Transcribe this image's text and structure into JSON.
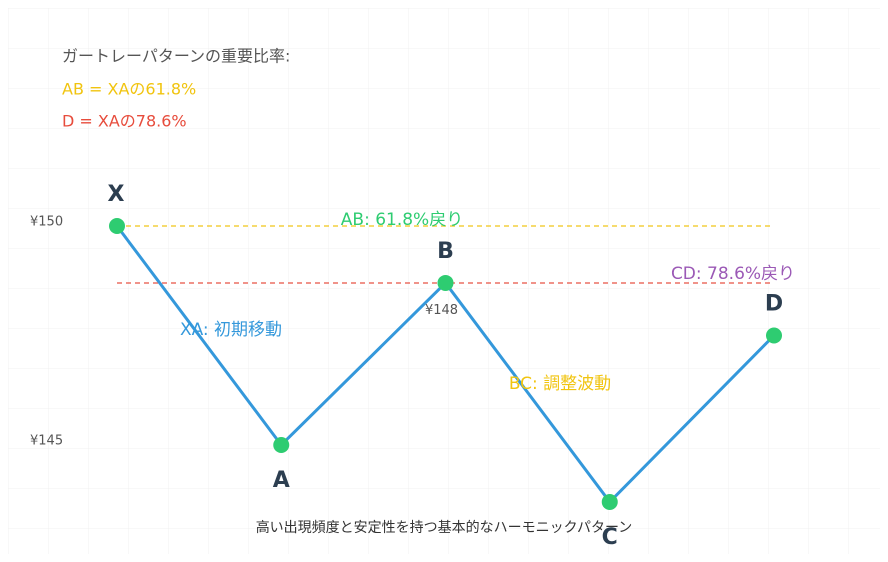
{
  "chart_data": {
    "type": "line",
    "categories": [
      "X",
      "A",
      "B",
      "C",
      "D"
    ],
    "values": [
      150,
      145,
      148.7,
      143.7,
      147.5
    ],
    "color": "#3498db",
    "point_color": "#2ecc71",
    "ylim": [
      143,
      151
    ],
    "yticks": [
      {
        "value": 150,
        "label": "¥150"
      },
      {
        "value": 145,
        "label": "¥145"
      }
    ],
    "price_label": {
      "value": 148,
      "label": "¥148"
    },
    "ref_lines": [
      {
        "value": 150,
        "color": "#f1c40f",
        "label": "AB: 61.8%戻り",
        "label_color": "#2ecc71"
      },
      {
        "value": 148.7,
        "color": "#e74c3c",
        "label": "CD: 78.6%戻り",
        "label_color": "#9b59b6"
      }
    ],
    "segment_labels": [
      {
        "text": "XA: 初期移動",
        "color": "#3498db"
      },
      {
        "text": "BC: 調整波動",
        "color": "#f1c40f"
      }
    ],
    "info": {
      "title": "ガートレーパターンの重要比率:",
      "lines": [
        {
          "text": "AB = XAの61.8%",
          "color": "#f1c40f"
        },
        {
          "text": "D = XAの78.6%",
          "color": "#e74c3c"
        }
      ]
    },
    "footer": "高い出現頻度と安定性を持つ基本的なハーモニックパターン"
  }
}
